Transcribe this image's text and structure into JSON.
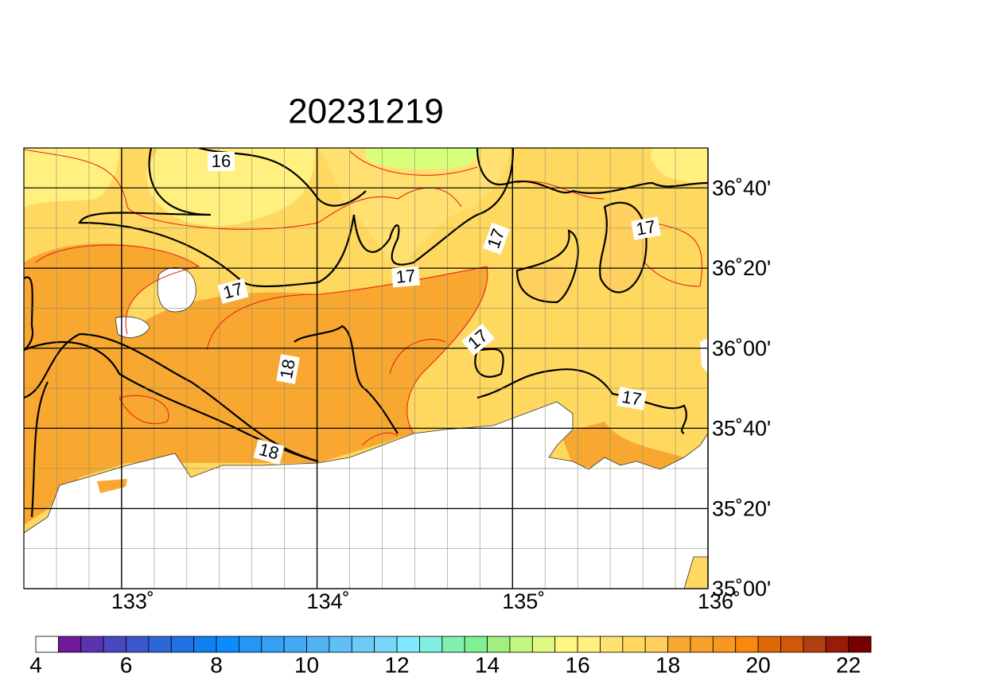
{
  "title": "20231219",
  "map": {
    "xlim": [
      132.5,
      136
    ],
    "ylim": [
      35,
      36.833
    ],
    "xticks": [
      {
        "value": 133,
        "label": "133˚"
      },
      {
        "value": 134,
        "label": "134˚"
      },
      {
        "value": 135,
        "label": "135˚"
      },
      {
        "value": 136,
        "label": "136˚"
      }
    ],
    "yticks": [
      {
        "value": 35,
        "label": "35˚00'"
      },
      {
        "value": 35.333,
        "label": "35˚20'"
      },
      {
        "value": 35.667,
        "label": "35˚40'"
      },
      {
        "value": 36,
        "label": "36˚00'"
      },
      {
        "value": 36.333,
        "label": "36˚20'"
      },
      {
        "value": 36.667,
        "label": "36˚40'"
      }
    ],
    "contour_labels": [
      16,
      17,
      17,
      17,
      17,
      17,
      17,
      18,
      18
    ]
  },
  "colorbar": {
    "lim": [
      4,
      22.5
    ],
    "ticks": [
      4,
      6,
      8,
      10,
      12,
      14,
      16,
      18,
      20,
      22
    ],
    "colors": [
      "#ffffff",
      "#6e1a9a",
      "#5b32b0",
      "#4a47c0",
      "#3b57cc",
      "#2e66d8",
      "#2072e4",
      "#1080f0",
      "#0a8cff",
      "#2696f4",
      "#34a0f4",
      "#42aaf4",
      "#50b4f4",
      "#5ec0f6",
      "#6ccaf8",
      "#78d6fa",
      "#80e8ff",
      "#80f0e0",
      "#80f0b0",
      "#80f090",
      "#a0f080",
      "#c0f880",
      "#e0f880",
      "#fff880",
      "#fff080",
      "#ffe070",
      "#ffd860",
      "#ffd060",
      "#f8a830",
      "#f8a028",
      "#f89820",
      "#f88810",
      "#e06808",
      "#d05808",
      "#b04010",
      "#981c08",
      "#780000"
    ]
  }
}
